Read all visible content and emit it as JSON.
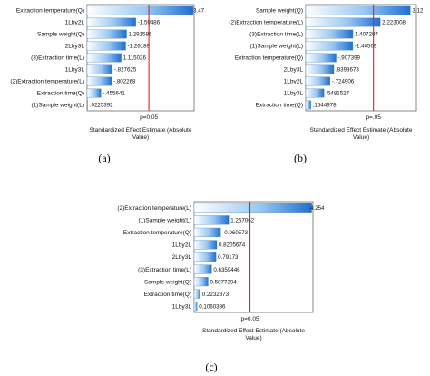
{
  "chart_data": [
    {
      "type": "bar",
      "orientation": "horizontal",
      "panel_label": "(a)",
      "xlabel": "Standardized Effect Estimate (Absolute Value)",
      "reference_line": {
        "label": "p=0.05",
        "value": 2.02
      },
      "xlim": [
        0,
        3.5
      ],
      "categories": [
        "Extraction temperature(Q)",
        "1Lby2L",
        "Sample weight(Q)",
        "2Lby3L",
        "(3)Extraction time(L)",
        "1Lby3L",
        "(2)Extraction temperature(L)",
        "Extraction time(Q)",
        "(1)Sample weight(L)"
      ],
      "values": [
        3.47,
        1.59486,
        1.291586,
        1.26189,
        1.115026,
        0.827625,
        0.802268,
        0.455641,
        0.0225392
      ],
      "value_labels": [
        "-3.47",
        "-1.59486",
        "1.291586",
        "-1.26189",
        "1.115026",
        "-.827625",
        "-.802268",
        "-.455641",
        ".0225392"
      ]
    },
    {
      "type": "bar",
      "orientation": "horizontal",
      "panel_label": "(b)",
      "xlabel": "Standardized Effect Estimate (Absolute Value)",
      "reference_line": {
        "label": "p=.05",
        "value": 2.02
      },
      "xlim": [
        0,
        3.3
      ],
      "categories": [
        "Sample weight(Q)",
        "(2)Extraction temperature(L)",
        "(3)Extraction time(L)",
        "(1)Sample weight(L)",
        "Extraction temperature(Q)",
        "2Lby3L",
        "1Lby2L",
        "1Lby3L",
        "Extraction time(Q)"
      ],
      "values": [
        3.12,
        2.223008,
        1.407287,
        1.40509,
        0.907399,
        0.8393673,
        0.724906,
        0.5481527,
        0.1544978
      ],
      "value_labels": [
        "3.12",
        "2.223008",
        "1.407287",
        "-1.40509",
        "-.907399",
        ".8393673",
        "-.724906",
        ".5481527",
        ".1544978"
      ]
    },
    {
      "type": "bar",
      "orientation": "horizontal",
      "panel_label": "(c)",
      "xlabel": "Standardized Effect Estimate (Absolute Value)",
      "reference_line": {
        "label": "p=0.05",
        "value": 2.02
      },
      "xlim": [
        0,
        4.3
      ],
      "categories": [
        "(2)Extraction temperature(L)",
        "(1)Sample weight(L)",
        "Extraction temperature(Q)",
        "1Lby2L",
        "2Lby3L",
        "(3)Extraction time(L)",
        "Sample weight(Q)",
        "Extraction time(Q)",
        "1Lby3L"
      ],
      "values": [
        4.254,
        1.257062,
        0.960573,
        0.8205674,
        0.79173,
        0.6359446,
        0.5077394,
        0.2232873,
        0.1060386
      ],
      "value_labels": [
        "4.254",
        "1.257062",
        "-0.960573",
        "0.8205674",
        "0.79173",
        "0.6359446",
        "0.5077394",
        "0.2232873",
        "0.1060386"
      ]
    }
  ]
}
